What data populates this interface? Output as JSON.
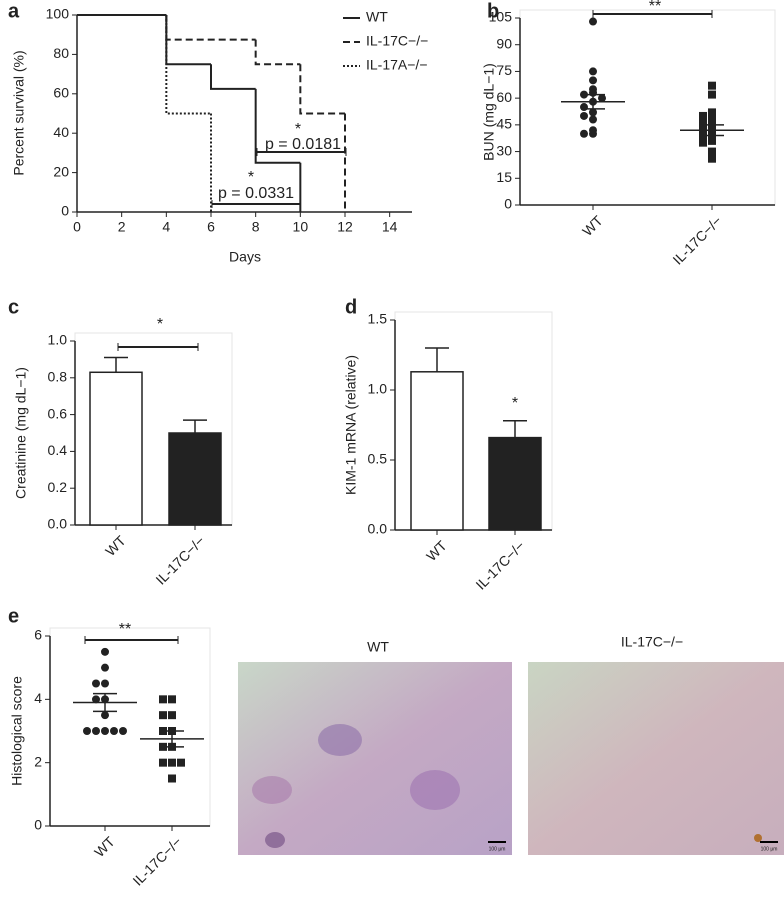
{
  "chart_data": [
    {
      "type": "step",
      "label": "a",
      "xlabel": "Days",
      "ylabel": "Percent survival (%)",
      "xlim": [
        0,
        15
      ],
      "xticks": [
        0,
        2,
        4,
        6,
        8,
        10,
        12,
        14
      ],
      "ylim": [
        0,
        100
      ],
      "yticks": [
        0,
        20,
        40,
        60,
        80,
        100
      ],
      "series": [
        {
          "name": "WT",
          "line_style": "solid",
          "color": "#222222",
          "x": [
            0,
            4,
            6,
            8,
            10
          ],
          "values": [
            100,
            75,
            62.5,
            25,
            0
          ]
        },
        {
          "name": "IL-17C−/−",
          "line_style": "dashed",
          "color": "#222222",
          "x": [
            0,
            4,
            8,
            10,
            12
          ],
          "values": [
            100,
            87.5,
            75,
            50,
            0
          ]
        },
        {
          "name": "IL-17A−/−",
          "line_style": "dotted",
          "color": "#222222",
          "x": [
            0,
            4,
            6
          ],
          "values": [
            100,
            50,
            0
          ]
        }
      ],
      "annotations": [
        "*",
        "p = 0.0181",
        "*",
        "p = 0.0331"
      ]
    },
    {
      "type": "dot",
      "label": "b",
      "ylabel": "BUN (mg dL−1)",
      "categories": [
        "WT",
        "IL-17C−/−"
      ],
      "ylim": [
        0,
        105
      ],
      "yticks": [
        0,
        15,
        30,
        45,
        60,
        75,
        90,
        105
      ],
      "points": [
        [
          103,
          75,
          70,
          65,
          63,
          62,
          60,
          58,
          55,
          52,
          50,
          48,
          42,
          40,
          40
        ],
        [
          67,
          62,
          52,
          50,
          48,
          46,
          44,
          42,
          40,
          38,
          36,
          35,
          30,
          26
        ]
      ],
      "means": [
        58,
        42
      ],
      "errors": [
        4,
        3
      ],
      "annotations": [
        "**"
      ]
    },
    {
      "type": "bar",
      "label": "c",
      "ylabel": "Creatinine (mg dL−1)",
      "categories": [
        "WT",
        "IL-17C−/−"
      ],
      "ylim": [
        0,
        1
      ],
      "yticks": [
        {
          "value": 0,
          "label": "0.0"
        },
        0.2,
        0.4,
        0.6,
        0.8,
        {
          "value": 1,
          "label": "1.0"
        }
      ],
      "values": [
        0.83,
        0.5
      ],
      "errors": [
        0.08,
        0.07
      ],
      "colors": [
        "#ffffff",
        "#222222"
      ],
      "annotations": [
        "*"
      ]
    },
    {
      "type": "bar",
      "label": "d",
      "ylabel": "KIM-1 mRNA (relative)",
      "categories": [
        "WT",
        "IL-17C−/−"
      ],
      "ylim": [
        0,
        1.5
      ],
      "yticks": [
        {
          "value": 0,
          "label": "0.0"
        },
        0.5,
        {
          "value": 1,
          "label": "1.0"
        },
        1.5
      ],
      "values": [
        1.13,
        0.66
      ],
      "errors": [
        0.17,
        0.12
      ],
      "colors": [
        "#ffffff",
        "#222222"
      ],
      "annotations": [
        "*"
      ]
    },
    {
      "type": "dot",
      "label": "e",
      "ylabel": "Histological score",
      "categories": [
        "WT",
        "IL-17C−/−"
      ],
      "ylim": [
        0,
        6
      ],
      "yticks": [
        0,
        2,
        4,
        6
      ],
      "points": [
        [
          5.5,
          5,
          4.5,
          4.5,
          4,
          4,
          3.5,
          3,
          3,
          3,
          3,
          3
        ],
        [
          4,
          4,
          3.5,
          3.5,
          3,
          3,
          2.5,
          2.5,
          2,
          2,
          2,
          1.5
        ]
      ],
      "means": [
        3.9,
        2.75
      ],
      "errors": [
        0.28,
        0.25
      ],
      "annotations": [
        "**"
      ]
    }
  ],
  "micrographs": {
    "panels": [
      {
        "title": "WT"
      },
      {
        "title": "IL-17C−/−"
      }
    ],
    "scale_bar": "100 μm"
  }
}
